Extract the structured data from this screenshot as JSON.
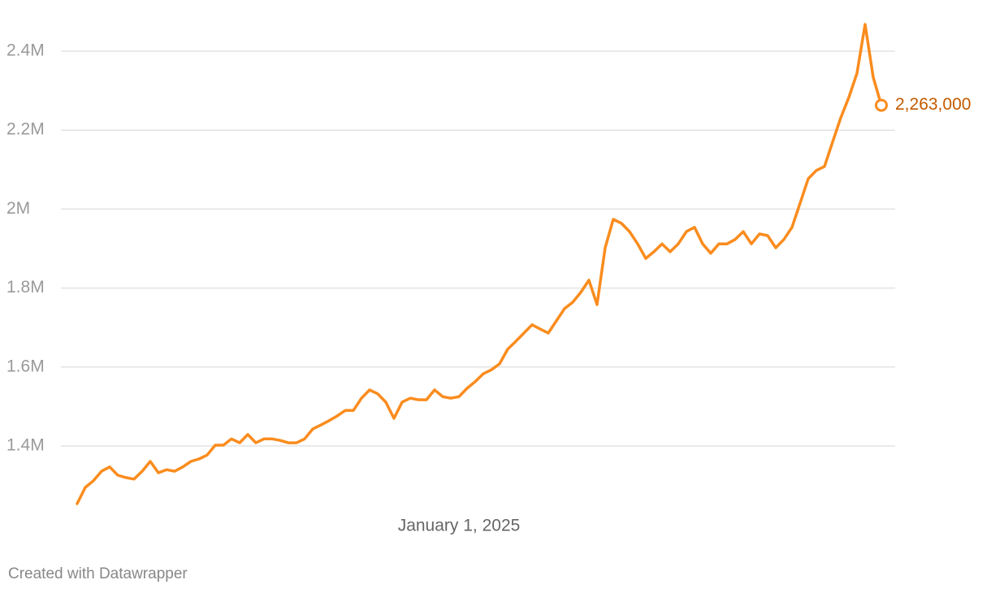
{
  "chart_data": {
    "type": "line",
    "color": "#fa8c1e",
    "label_color": "#c45a00",
    "grid": true,
    "credit": "Created with Datawrapper",
    "ylim": [
      1240000,
      2490000
    ],
    "yticks": [
      {
        "value": 1400000,
        "label": "1.4M"
      },
      {
        "value": 1600000,
        "label": "1.6M"
      },
      {
        "value": 1800000,
        "label": "1.8M"
      },
      {
        "value": 2000000,
        "label": "2M"
      },
      {
        "value": 2200000,
        "label": "2.2M"
      },
      {
        "value": 2400000,
        "label": "2.4M"
      }
    ],
    "categories": [
      null,
      null,
      null,
      null,
      null,
      null,
      null,
      null,
      null,
      null,
      null,
      null,
      null,
      null,
      null,
      null,
      null,
      null,
      null,
      null,
      null,
      null,
      null,
      null,
      null,
      null,
      null,
      null,
      null,
      null,
      null,
      null,
      null,
      null,
      null,
      null,
      null,
      null,
      null,
      null,
      null,
      null,
      null,
      null,
      null,
      null,
      null,
      "January 1, 2025",
      null,
      null,
      null,
      null,
      null,
      null,
      null,
      null,
      null,
      null,
      null,
      null,
      null,
      null,
      null,
      null,
      null,
      null,
      null,
      null,
      null,
      null,
      null,
      null,
      null,
      null,
      null,
      null,
      null,
      null,
      null,
      null,
      null,
      null,
      null,
      null,
      null,
      null,
      null,
      null,
      null,
      null,
      null,
      null,
      null,
      null,
      null,
      null,
      null,
      null,
      null,
      null
    ],
    "values": [
      1254000,
      1295000,
      1312000,
      1336000,
      1347000,
      1326000,
      1320000,
      1316000,
      1336000,
      1361000,
      1332000,
      1340000,
      1336000,
      1347000,
      1361000,
      1367000,
      1377000,
      1402000,
      1402000,
      1418000,
      1408000,
      1429000,
      1408000,
      1418000,
      1418000,
      1414000,
      1408000,
      1408000,
      1418000,
      1443000,
      1453000,
      1464000,
      1476000,
      1490000,
      1490000,
      1521000,
      1542000,
      1532000,
      1511000,
      1470000,
      1511000,
      1521000,
      1517000,
      1517000,
      1542000,
      1525000,
      1521000,
      1525000,
      1546000,
      1563000,
      1583000,
      1593000,
      1608000,
      1645000,
      1665000,
      1686000,
      1707000,
      1696000,
      1686000,
      1717000,
      1748000,
      1764000,
      1789000,
      1820000,
      1758000,
      1902000,
      1974000,
      1964000,
      1943000,
      1912000,
      1875000,
      1892000,
      1912000,
      1892000,
      1912000,
      1943000,
      1954000,
      1912000,
      1888000,
      1912000,
      1912000,
      1923000,
      1943000,
      1912000,
      1937000,
      1933000,
      1902000,
      1923000,
      1954000,
      2015000,
      2077000,
      2098000,
      2108000,
      2170000,
      2231000,
      2283000,
      2344000,
      2468000,
      2334000,
      2263000
    ],
    "value_labels": [
      null,
      null,
      null,
      null,
      null,
      null,
      null,
      null,
      null,
      null,
      null,
      null,
      null,
      null,
      null,
      null,
      null,
      null,
      null,
      null,
      null,
      null,
      null,
      null,
      null,
      null,
      null,
      null,
      null,
      null,
      null,
      null,
      null,
      null,
      null,
      null,
      null,
      null,
      null,
      null,
      null,
      null,
      null,
      null,
      null,
      null,
      null,
      null,
      null,
      null,
      null,
      null,
      null,
      null,
      null,
      null,
      null,
      null,
      null,
      null,
      null,
      null,
      null,
      null,
      null,
      null,
      null,
      null,
      null,
      null,
      null,
      null,
      null,
      null,
      null,
      null,
      null,
      null,
      null,
      null,
      null,
      null,
      null,
      null,
      null,
      null,
      null,
      null,
      null,
      null,
      null,
      null,
      null,
      null,
      null,
      null,
      null,
      null,
      null,
      "2,263,000"
    ]
  }
}
